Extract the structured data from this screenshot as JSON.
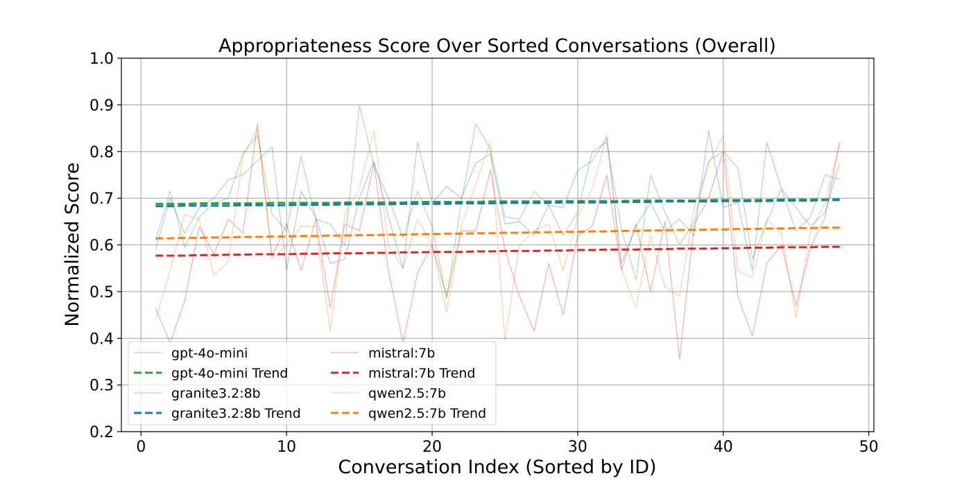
{
  "chart_data": {
    "type": "line",
    "title": "Appropriateness Score Over Sorted Conversations (Overall)",
    "xlabel": "Conversation Index (Sorted by ID)",
    "ylabel": "Normalized Score",
    "xlim": [
      -1.35,
      50.35
    ],
    "ylim": [
      0.2,
      1.0
    ],
    "xticks": [
      0,
      10,
      20,
      30,
      40,
      50
    ],
    "yticks": [
      0.2,
      0.3,
      0.4,
      0.5,
      0.6,
      0.7,
      0.8,
      0.9,
      1.0
    ],
    "grid": true,
    "legend_position": "lower-left",
    "x": [
      1,
      2,
      3,
      4,
      5,
      6,
      7,
      8,
      9,
      10,
      11,
      12,
      13,
      14,
      15,
      16,
      17,
      18,
      19,
      20,
      21,
      22,
      23,
      24,
      25,
      26,
      27,
      28,
      29,
      30,
      31,
      32,
      33,
      34,
      35,
      36,
      37,
      38,
      39,
      40,
      41,
      42,
      43,
      44,
      45,
      46,
      47,
      48
    ],
    "series": [
      {
        "name": "gpt-4o-mini",
        "color": "#2ca02c",
        "style": "solid",
        "values": [
          0.61,
          0.715,
          0.595,
          0.66,
          0.69,
          0.7,
          0.795,
          0.835,
          0.665,
          0.63,
          0.79,
          0.655,
          0.645,
          0.6,
          0.9,
          0.77,
          0.7,
          0.615,
          0.715,
          0.64,
          0.485,
          0.69,
          0.86,
          0.805,
          0.66,
          0.655,
          0.715,
          0.685,
          0.62,
          0.67,
          0.8,
          0.82,
          0.635,
          0.525,
          0.75,
          0.67,
          0.6,
          0.65,
          0.78,
          0.8,
          0.765,
          0.57,
          0.65,
          0.72,
          0.63,
          0.66,
          0.75,
          0.74
        ]
      },
      {
        "name": "gpt-4o-mini Trend",
        "color": "#2ca02c",
        "style": "dashed",
        "values": [
          0.688,
          0.688,
          0.688,
          0.689,
          0.689,
          0.689,
          0.689,
          0.689,
          0.69,
          0.69,
          0.69,
          0.69,
          0.69,
          0.691,
          0.691,
          0.691,
          0.691,
          0.691,
          0.692,
          0.692,
          0.692,
          0.692,
          0.692,
          0.693,
          0.693,
          0.693,
          0.693,
          0.693,
          0.694,
          0.694,
          0.694,
          0.694,
          0.694,
          0.695,
          0.695,
          0.695,
          0.695,
          0.695,
          0.696,
          0.696,
          0.696,
          0.696,
          0.696,
          0.697,
          0.697,
          0.697,
          0.697,
          0.698
        ]
      },
      {
        "name": "granite3.2:8b",
        "color": "#1f77b4",
        "style": "solid",
        "values": [
          0.59,
          0.7,
          0.625,
          0.68,
          0.7,
          0.74,
          0.75,
          0.78,
          0.81,
          0.545,
          0.715,
          0.66,
          0.56,
          0.57,
          0.7,
          0.78,
          0.66,
          0.55,
          0.82,
          0.69,
          0.725,
          0.7,
          0.775,
          0.795,
          0.645,
          0.65,
          0.62,
          0.685,
          0.68,
          0.76,
          0.78,
          0.83,
          0.56,
          0.64,
          0.69,
          0.63,
          0.655,
          0.62,
          0.845,
          0.68,
          0.69,
          0.545,
          0.82,
          0.72,
          0.68,
          0.64,
          0.67,
          0.775
        ]
      },
      {
        "name": "granite3.2:8b Trend",
        "color": "#1f77b4",
        "style": "dashed",
        "values": [
          0.683,
          0.683,
          0.684,
          0.684,
          0.684,
          0.684,
          0.685,
          0.685,
          0.685,
          0.685,
          0.686,
          0.686,
          0.686,
          0.687,
          0.687,
          0.687,
          0.687,
          0.688,
          0.688,
          0.688,
          0.688,
          0.689,
          0.689,
          0.689,
          0.69,
          0.69,
          0.69,
          0.69,
          0.691,
          0.691,
          0.691,
          0.691,
          0.692,
          0.692,
          0.692,
          0.693,
          0.693,
          0.693,
          0.693,
          0.694,
          0.694,
          0.694,
          0.694,
          0.695,
          0.695,
          0.695,
          0.696,
          0.696
        ]
      },
      {
        "name": "mistral:7b",
        "color": "#d62728",
        "style": "solid",
        "values": [
          0.465,
          0.39,
          0.48,
          0.64,
          0.58,
          0.655,
          0.625,
          0.86,
          0.575,
          0.645,
          0.545,
          0.655,
          0.465,
          0.645,
          0.63,
          0.775,
          0.545,
          0.39,
          0.54,
          0.6,
          0.49,
          0.63,
          0.63,
          0.76,
          0.59,
          0.49,
          0.415,
          0.56,
          0.45,
          0.62,
          0.64,
          0.75,
          0.545,
          0.645,
          0.5,
          0.65,
          0.355,
          0.645,
          0.7,
          0.8,
          0.49,
          0.405,
          0.56,
          0.6,
          0.47,
          0.595,
          0.66,
          0.82
        ]
      },
      {
        "name": "mistral:7b Trend",
        "color": "#d62728",
        "style": "dashed",
        "values": [
          0.577,
          0.577,
          0.577,
          0.578,
          0.578,
          0.579,
          0.579,
          0.58,
          0.58,
          0.58,
          0.581,
          0.581,
          0.582,
          0.582,
          0.582,
          0.583,
          0.583,
          0.584,
          0.584,
          0.585,
          0.585,
          0.585,
          0.586,
          0.586,
          0.587,
          0.587,
          0.587,
          0.588,
          0.588,
          0.589,
          0.589,
          0.59,
          0.59,
          0.59,
          0.591,
          0.591,
          0.592,
          0.592,
          0.592,
          0.593,
          0.593,
          0.594,
          0.594,
          0.595,
          0.595,
          0.595,
          0.596,
          0.596
        ]
      },
      {
        "name": "qwen2.5:7b",
        "color": "#ff7f0e",
        "style": "solid",
        "values": [
          0.44,
          0.545,
          0.665,
          0.655,
          0.535,
          0.565,
          0.79,
          0.85,
          0.57,
          0.6,
          0.64,
          0.64,
          0.415,
          0.665,
          0.72,
          0.845,
          0.6,
          0.55,
          0.655,
          0.6,
          0.455,
          0.64,
          0.73,
          0.82,
          0.395,
          0.6,
          0.63,
          0.645,
          0.545,
          0.66,
          0.72,
          0.835,
          0.55,
          0.465,
          0.62,
          0.51,
          0.49,
          0.68,
          0.775,
          0.835,
          0.545,
          0.53,
          0.655,
          0.625,
          0.445,
          0.63,
          0.69,
          0.82
        ]
      },
      {
        "name": "qwen2.5:7b Trend",
        "color": "#ff7f0e",
        "style": "dashed",
        "values": [
          0.614,
          0.614,
          0.615,
          0.615,
          0.616,
          0.616,
          0.617,
          0.617,
          0.618,
          0.618,
          0.619,
          0.619,
          0.62,
          0.62,
          0.621,
          0.621,
          0.622,
          0.622,
          0.623,
          0.623,
          0.624,
          0.624,
          0.625,
          0.625,
          0.626,
          0.626,
          0.627,
          0.627,
          0.628,
          0.628,
          0.629,
          0.629,
          0.63,
          0.63,
          0.631,
          0.631,
          0.632,
          0.632,
          0.633,
          0.633,
          0.634,
          0.634,
          0.635,
          0.635,
          0.636,
          0.636,
          0.637,
          0.637
        ]
      }
    ]
  }
}
